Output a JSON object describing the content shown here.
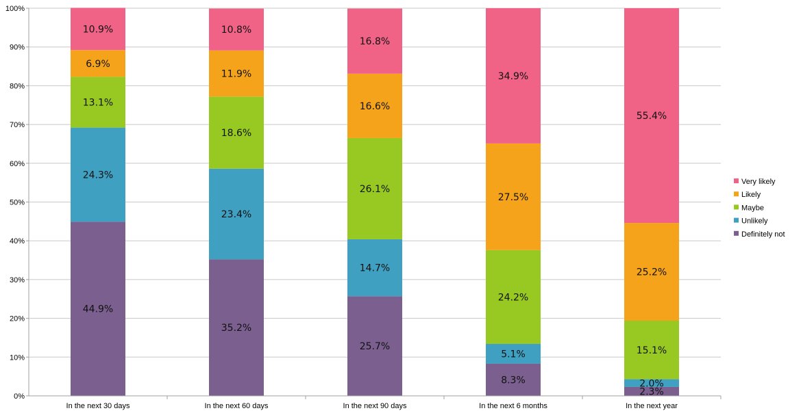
{
  "chart_data": {
    "type": "bar",
    "stacked": true,
    "percent_stacked": true,
    "categories": [
      "In the next 30 days",
      "In the next 60 days",
      "In the next 90 days",
      "In the next 6 months",
      "In the next year"
    ],
    "series": [
      {
        "name": "Definitely not",
        "color": "#7b5f8f",
        "values": [
          44.9,
          35.2,
          25.7,
          8.3,
          2.3
        ],
        "labels": [
          "44.9%",
          "35.2%",
          "25.7%",
          "8.3%",
          "2.3%"
        ]
      },
      {
        "name": "Unlikely",
        "color": "#3fa0c1",
        "values": [
          24.3,
          23.4,
          14.7,
          5.1,
          2.0
        ],
        "labels": [
          "24.3%",
          "23.4%",
          "14.7%",
          "5.1%",
          "2.0%"
        ]
      },
      {
        "name": "Maybe",
        "color": "#97c922",
        "values": [
          13.1,
          18.6,
          26.1,
          24.2,
          15.1
        ],
        "labels": [
          "13.1%",
          "18.6%",
          "26.1%",
          "24.2%",
          "15.1%"
        ]
      },
      {
        "name": "Likely",
        "color": "#f5a31a",
        "values": [
          6.9,
          11.9,
          16.6,
          27.5,
          25.2
        ],
        "labels": [
          "6.9%",
          "11.9%",
          "16.6%",
          "27.5%",
          "25.2%"
        ]
      },
      {
        "name": "Very likely",
        "color": "#f06386",
        "values": [
          10.9,
          10.8,
          16.8,
          34.9,
          55.4
        ],
        "labels": [
          "10.9%",
          "10.8%",
          "16.8%",
          "34.9%",
          "55.4%"
        ]
      }
    ],
    "ylim": [
      0,
      100
    ],
    "yticks": [
      "0%",
      "10%",
      "20%",
      "30%",
      "40%",
      "50%",
      "60%",
      "70%",
      "80%",
      "90%",
      "100%"
    ],
    "grid": true,
    "legend": {
      "placement": "right",
      "order": [
        "Very likely",
        "Likely",
        "Maybe",
        "Unlikely",
        "Definitely not"
      ]
    },
    "title": "",
    "xlabel": "",
    "ylabel": ""
  }
}
